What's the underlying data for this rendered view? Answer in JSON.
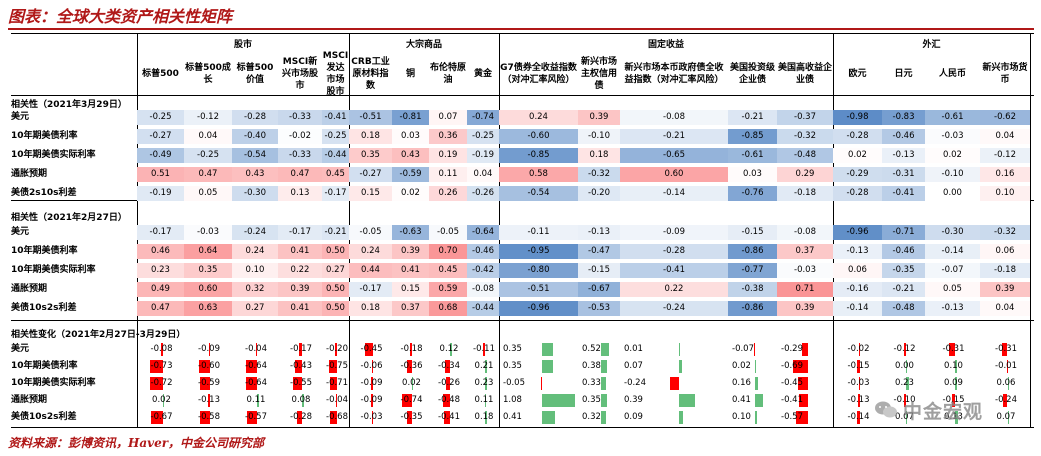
{
  "title": "图表：全球大类资产相关性矩阵",
  "source": "资料来源：彭博资讯，Haver，中金公司研究部",
  "watermark": "中金宏观",
  "groups": [
    "股市",
    "大宗商品",
    "固定收益",
    "外汇"
  ],
  "columns": [
    "标普500",
    "标普500成长",
    "标普500价值",
    "MSCI新兴市场股市",
    "MSCI发达市场股市",
    "CRB工业原材料指数",
    "铜",
    "布伦特原油",
    "黄金",
    "G7债券全收益指数（对冲汇率风险）",
    "新兴市场主权信用债",
    "新兴市场本币政府债全收益指数（对冲汇率风险）",
    "美国投资级企业债",
    "美国高收益企业债",
    "欧元",
    "日元",
    "人民币",
    "新兴市场货币"
  ],
  "row_labels": [
    "美元",
    "10年期美债利率",
    "10年期美债实际利率",
    "通胀预期",
    "美债2s10s利差"
  ],
  "sections": [
    {
      "title": "相关性（2021年3月29日）",
      "labels": [
        "美元",
        "10年期美债利率",
        "10年期美债实际利率",
        "通胀预期",
        "美债2s10s利差"
      ],
      "rows": [
        [
          "-0.25",
          "-0.12",
          "-0.28",
          "-0.33",
          "-0.41",
          "-0.51",
          "-0.81",
          "0.07",
          "-0.74",
          "0.24",
          "0.39",
          "-0.08",
          "-0.21",
          "-0.37",
          "-0.98",
          "-0.83",
          "-0.61",
          "-0.62"
        ],
        [
          "-0.27",
          "0.04",
          "-0.40",
          "-0.02",
          "-0.25",
          "0.18",
          "0.03",
          "0.36",
          "-0.25",
          "-0.60",
          "-0.10",
          "-0.21",
          "-0.85",
          "-0.32",
          "-0.28",
          "-0.46",
          "-0.03",
          "0.04"
        ],
        [
          "-0.49",
          "-0.25",
          "-0.54",
          "-0.33",
          "-0.44",
          "0.35",
          "0.43",
          "0.19",
          "-0.19",
          "-0.85",
          "0.18",
          "-0.65",
          "-0.61",
          "-0.48",
          "0.02",
          "-0.13",
          "0.02",
          "-0.12"
        ],
        [
          "0.51",
          "0.47",
          "0.43",
          "0.47",
          "0.45",
          "-0.27",
          "-0.59",
          "0.11",
          "0.04",
          "0.58",
          "-0.32",
          "0.60",
          "0.03",
          "0.29",
          "-0.29",
          "-0.31",
          "-0.10",
          "0.16"
        ],
        [
          "-0.19",
          "0.05",
          "-0.30",
          "0.13",
          "-0.17",
          "0.15",
          "0.02",
          "0.26",
          "-0.26",
          "-0.54",
          "-0.20",
          "-0.14",
          "-0.76",
          "-0.18",
          "-0.28",
          "-0.41",
          "0.00",
          "0.10"
        ]
      ]
    },
    {
      "title": "相关性（2021年2月27日）",
      "labels": [
        "美元",
        "10年期美债利率",
        "10年期美债实际利率",
        "通胀预期",
        "美债10s2s利差"
      ],
      "rows": [
        [
          "-0.17",
          "-0.03",
          "-0.24",
          "-0.17",
          "-0.21",
          "-0.05",
          "-0.63",
          "-0.05",
          "-0.64",
          "-0.11",
          "-0.13",
          "-0.09",
          "-0.15",
          "-0.08",
          "-0.96",
          "-0.71",
          "-0.30",
          "-0.32"
        ],
        [
          "0.46",
          "0.64",
          "0.24",
          "0.41",
          "0.50",
          "0.24",
          "0.39",
          "0.70",
          "-0.46",
          "-0.95",
          "-0.47",
          "-0.28",
          "-0.86",
          "0.37",
          "-0.13",
          "-0.46",
          "-0.14",
          "0.06"
        ],
        [
          "0.23",
          "0.35",
          "0.10",
          "0.22",
          "0.27",
          "0.44",
          "0.41",
          "0.45",
          "-0.42",
          "-0.80",
          "-0.15",
          "-0.41",
          "-0.77",
          "-0.03",
          "0.06",
          "-0.35",
          "-0.07",
          "-0.18"
        ],
        [
          "0.49",
          "0.60",
          "0.32",
          "0.39",
          "0.50",
          "-0.17",
          "0.15",
          "0.59",
          "-0.08",
          "-0.51",
          "-0.67",
          "0.22",
          "-0.38",
          "0.71",
          "-0.16",
          "-0.21",
          "0.05",
          "0.39"
        ],
        [
          "0.47",
          "0.63",
          "0.27",
          "0.41",
          "0.50",
          "0.18",
          "0.37",
          "0.68",
          "-0.44",
          "-0.96",
          "-0.53",
          "-0.24",
          "-0.86",
          "0.39",
          "-0.14",
          "-0.48",
          "-0.13",
          "0.04"
        ]
      ]
    }
  ],
  "change": {
    "title": "相关性变化（2021年2月27日-3月29日）",
    "labels": [
      "美元",
      "10年期美债利率",
      "10年期美债实际利率",
      "通胀预期",
      "美债10s2s利差"
    ],
    "rows": [
      [
        "-0.08",
        "-0.09",
        "-0.04",
        "-0.17",
        "-0.20",
        "-0.45",
        "-0.18",
        "0.12",
        "-0.11",
        "0.35",
        "0.52",
        "0.01",
        "-0.07",
        "-0.29",
        "-0.02",
        "-0.12",
        "-0.31",
        "-0.31"
      ],
      [
        "-0.73",
        "-0.60",
        "-0.64",
        "-0.43",
        "-0.75",
        "-0.06",
        "-0.36",
        "-0.34",
        "0.21",
        "0.35",
        "0.38",
        "0.07",
        "0.02",
        "-0.69",
        "-0.15",
        "0.00",
        "0.10",
        "-0.01"
      ],
      [
        "-0.72",
        "-0.59",
        "-0.64",
        "-0.55",
        "-0.71",
        "-0.09",
        "0.02",
        "-0.26",
        "0.23",
        "-0.05",
        "0.33",
        "-0.24",
        "0.16",
        "-0.45",
        "-0.03",
        "0.23",
        "0.09",
        "0.06"
      ],
      [
        "0.02",
        "-0.13",
        "0.11",
        "0.08",
        "-0.04",
        "-0.09",
        "-0.74",
        "-0.48",
        "0.11",
        "1.08",
        "0.35",
        "0.39",
        "0.41",
        "-0.41",
        "-0.13",
        "-0.10",
        "-0.15",
        "-0.24"
      ],
      [
        "-0.67",
        "-0.58",
        "-0.57",
        "-0.28",
        "-0.68",
        "-0.03",
        "-0.35",
        "-0.41",
        "0.18",
        "0.41",
        "0.32",
        "0.09",
        "0.10",
        "-0.57",
        "-0.14",
        "0.07",
        "0.13",
        "0.07"
      ]
    ]
  },
  "colors": {
    "title": "#b01818",
    "pos": "#f8696b",
    "neg": "#5a8ac6",
    "bar_neg": "#ff0000",
    "bar_pos": "#63be7b"
  }
}
